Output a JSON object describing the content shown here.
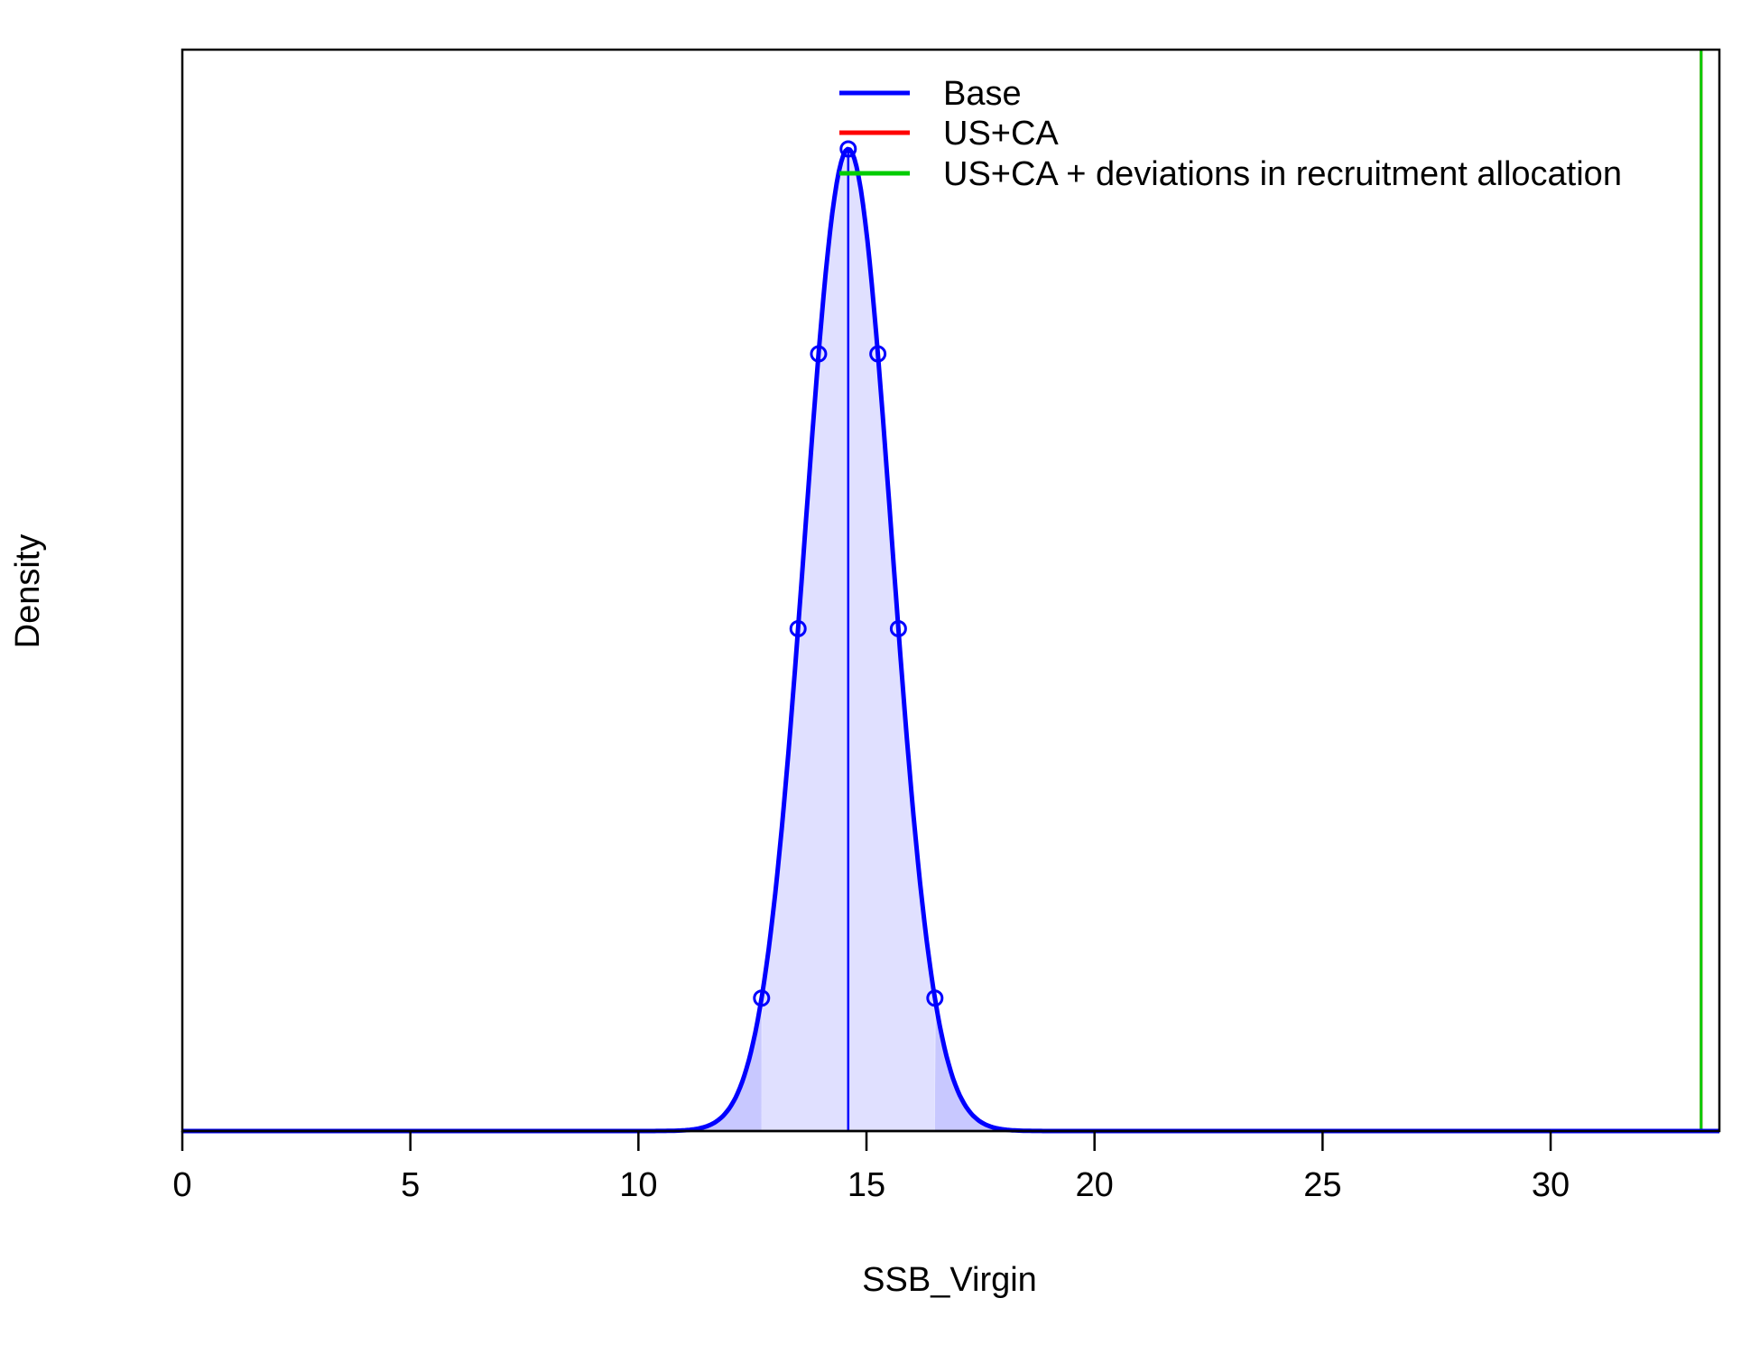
{
  "chart_data": {
    "type": "area",
    "xlabel": "SSB_Virgin",
    "ylabel": "Density",
    "xlim": [
      0,
      33.7
    ],
    "ylim": [
      0,
      1.1
    ],
    "x_ticks": [
      0,
      5,
      10,
      15,
      20,
      25,
      30
    ],
    "y_ticks_shown": false,
    "grid": false,
    "legend": {
      "placement": "top-center",
      "entries": [
        {
          "label": "Base",
          "color": "#0000ff"
        },
        {
          "label": "US+CA",
          "color": "#ff0000"
        },
        {
          "label": "US+CA + deviations in recruitment allocation",
          "color": "#00cc00"
        }
      ]
    },
    "series": [
      {
        "name": "Base",
        "color": "#0000ff",
        "fill": "#e0e0ff",
        "tail_fill": "#c8c8ff",
        "distribution": "normal",
        "mean": 14.6,
        "sd": 0.95,
        "peak_density": 1.0,
        "interval_95": [
          12.7,
          16.5
        ],
        "markers_x": [
          12.7,
          13.5,
          13.95,
          14.6,
          15.25,
          15.7,
          16.5
        ]
      },
      {
        "name": "US+CA",
        "color": "#ff0000",
        "vertical_line_x": 33.3
      },
      {
        "name": "US+CA + deviations in recruitment allocation",
        "color": "#00cc00",
        "vertical_line_x": 33.3
      }
    ],
    "median_line": {
      "x": 14.6,
      "color": "#0000ff"
    }
  }
}
